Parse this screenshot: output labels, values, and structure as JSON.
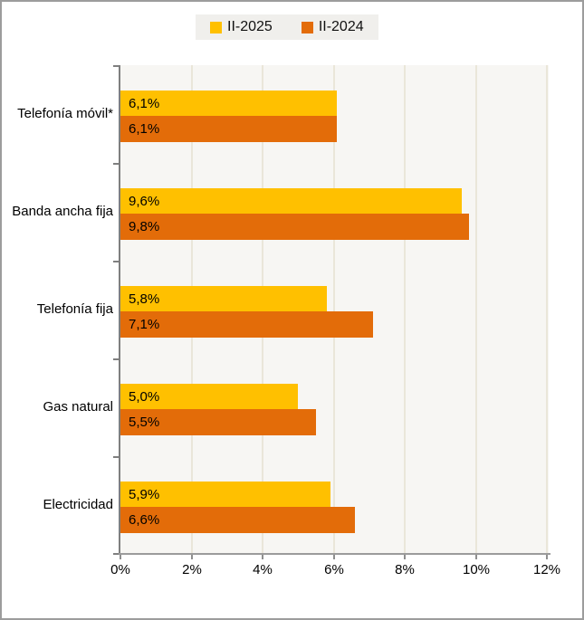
{
  "legend": {
    "items": [
      {
        "label": "II-2025",
        "color": "#ffc000",
        "swatch_icon": "square-swatch-icon"
      },
      {
        "label": "II-2024",
        "color": "#e36c09",
        "swatch_icon": "square-swatch-icon"
      }
    ]
  },
  "chart_data": {
    "type": "bar",
    "orientation": "horizontal",
    "title": "",
    "xlabel": "",
    "ylabel": "",
    "categories": [
      "Telefonía móvil*",
      "Banda ancha fija",
      "Telefonía fija",
      "Gas natural",
      "Electricidad"
    ],
    "series": [
      {
        "name": "II-2025",
        "color": "#ffc000",
        "values": [
          6.1,
          9.6,
          5.8,
          5.0,
          5.9
        ],
        "data_labels": [
          "6,1%",
          "9,6%",
          "5,8%",
          "5,0%",
          "5,9%"
        ]
      },
      {
        "name": "II-2024",
        "color": "#e36c09",
        "values": [
          6.1,
          9.8,
          7.1,
          5.5,
          6.6
        ],
        "data_labels": [
          "6,1%",
          "9,8%",
          "7,1%",
          "5,5%",
          "6,6%"
        ]
      }
    ],
    "xlim": [
      0,
      12
    ],
    "x_tick_values": [
      0,
      2,
      4,
      6,
      8,
      10,
      12
    ],
    "x_tick_labels": [
      "0%",
      "2%",
      "4%",
      "6%",
      "8%",
      "10%",
      "12%"
    ],
    "grid": true,
    "gridline_color": "#eae6d9",
    "plot_background": "#f7f6f3",
    "legend_position": "top"
  },
  "colors": {
    "series_2025": "#ffc000",
    "series_2024": "#e36c09",
    "axis": "#7f7f7f",
    "frame_border": "#9c9c9c",
    "legend_background": "#f0efec"
  }
}
